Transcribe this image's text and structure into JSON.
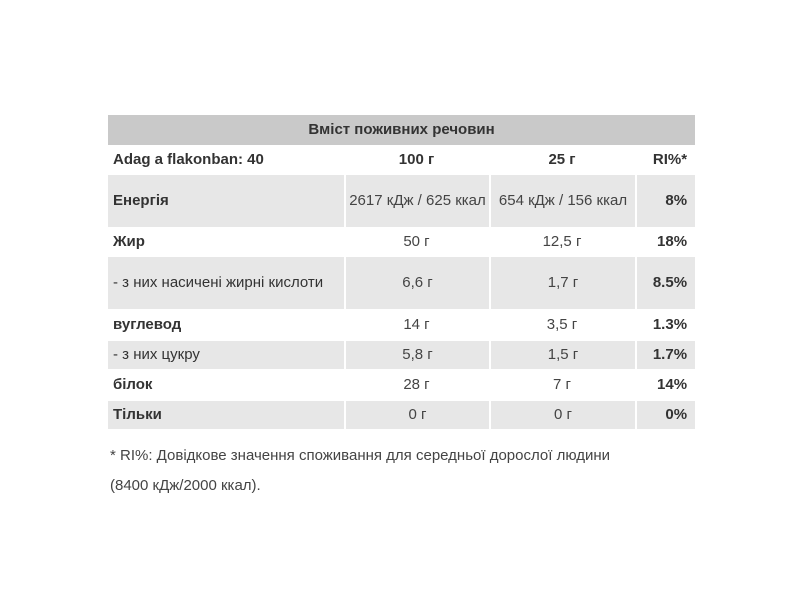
{
  "table": {
    "title": "Вміст поживних речовин",
    "header": {
      "servings": "Adag a flakonban: 40",
      "per_100": "100 г",
      "per_25": "25 г",
      "ri": "RI%*"
    },
    "rows": [
      {
        "name": "Енергія",
        "v100": "2617 кДж / 625 ккал",
        "v25": "654 кДж / 156 ккал",
        "ri": "8%"
      },
      {
        "name": "Жир",
        "v100": "50 г",
        "v25": "12,5 г",
        "ri": "18%"
      },
      {
        "name": "- з них насичені жирні кислоти",
        "v100": "6,6 г",
        "v25": "1,7 г",
        "ri": "8.5%"
      },
      {
        "name": "вуглевод",
        "v100": "14 г",
        "v25": "3,5 г",
        "ri": "1.3%"
      },
      {
        "name": "- з них цукру",
        "v100": "5,8 г",
        "v25": "1,5 г",
        "ri": "1.7%"
      },
      {
        "name": "білок",
        "v100": "28 г",
        "v25": "7 г",
        "ri": "14%"
      },
      {
        "name": "Тільки",
        "v100": "0 г",
        "v25": "0 г",
        "ri": "0%"
      }
    ]
  },
  "footnote": "* RI%: Довідкове значення споживання для середньої дорослої людини (8400 кДж/2000 ккал)."
}
